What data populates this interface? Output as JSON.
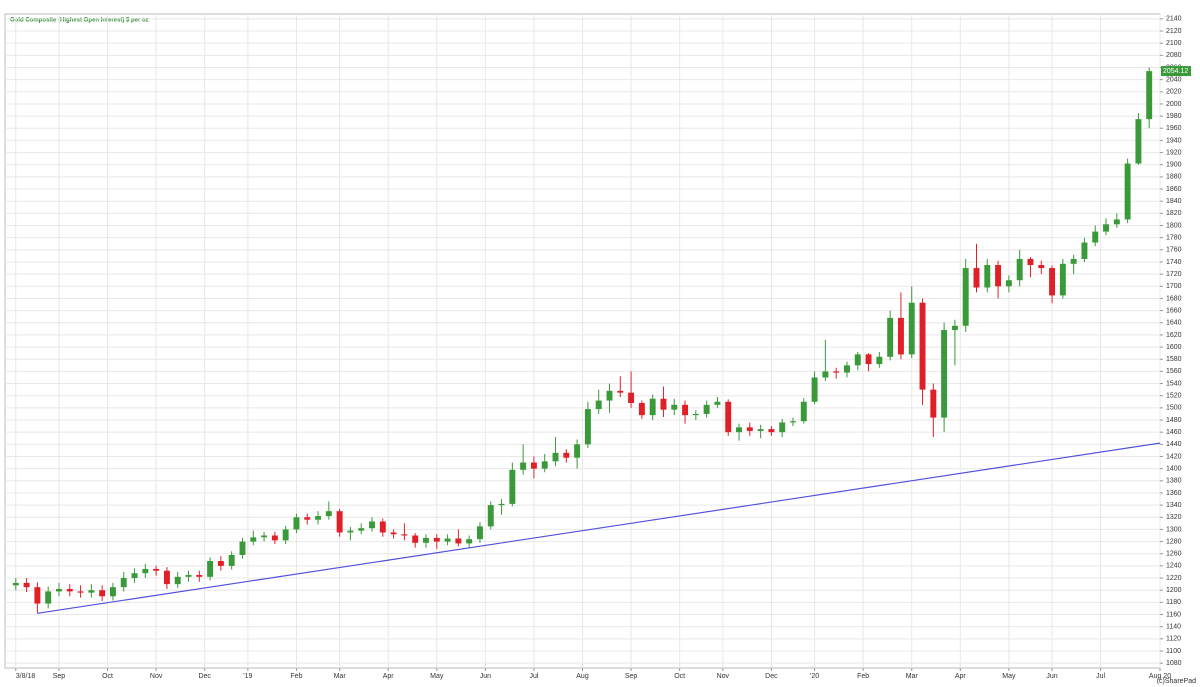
{
  "chart_data": {
    "type": "candlestick",
    "title": "Gold Composite (Highest Open Interest) $ per oz",
    "credit": "(c)SharePad",
    "last_price": 2054.12,
    "up_color": "#3a9a3a",
    "down_color": "#e02028",
    "grid": true,
    "x": [
      0,
      1,
      2,
      3,
      4,
      5,
      6,
      7,
      8,
      9,
      10,
      11,
      12,
      13,
      14,
      15,
      16,
      17,
      18,
      19,
      20,
      21,
      22,
      23,
      24,
      25,
      26,
      27,
      28,
      29,
      30,
      31,
      32,
      33,
      34,
      35,
      36,
      37,
      38,
      39,
      40,
      41,
      42,
      43,
      44,
      45,
      46,
      47,
      48,
      49,
      50,
      51,
      52,
      53,
      54,
      55,
      56,
      57,
      58,
      59,
      60,
      61,
      62,
      63,
      64,
      65,
      66,
      67,
      68,
      69,
      70,
      71,
      72,
      73,
      74,
      75,
      76,
      77,
      78,
      79,
      80,
      81,
      82,
      83,
      84,
      85,
      86,
      87,
      88,
      89,
      90,
      91,
      92,
      93,
      94,
      95,
      96,
      97,
      98,
      99,
      100,
      101,
      102,
      103,
      104,
      105
    ],
    "open": [
      1208,
      1212,
      1205,
      1178,
      1198,
      1202,
      1198,
      1196,
      1200,
      1190,
      1205,
      1220,
      1228,
      1235,
      1232,
      1210,
      1222,
      1225,
      1222,
      1248,
      1240,
      1258,
      1280,
      1287,
      1290,
      1282,
      1300,
      1320,
      1316,
      1322,
      1330,
      1295,
      1298,
      1302,
      1313,
      1295,
      1292,
      1290,
      1278,
      1286,
      1280,
      1285,
      1277,
      1284,
      1305,
      1340,
      1342,
      1398,
      1410,
      1400,
      1412,
      1426,
      1418,
      1440,
      1498,
      1512,
      1528,
      1525,
      1508,
      1488,
      1515,
      1497,
      1505,
      1488,
      1490,
      1505,
      1510,
      1460,
      1468,
      1462,
      1465,
      1460,
      1476,
      1478,
      1510,
      1550,
      1560,
      1558,
      1570,
      1588,
      1572,
      1584,
      1648,
      1588,
      1673,
      1530,
      1484,
      1628,
      1635,
      1730,
      1698,
      1735,
      1700,
      1710,
      1745,
      1735,
      1730,
      1685,
      1737,
      1745,
      1772,
      1790,
      1802,
      1810,
      1902,
      1975
    ],
    "high": [
      1220,
      1220,
      1213,
      1206,
      1212,
      1210,
      1208,
      1210,
      1208,
      1212,
      1230,
      1236,
      1243,
      1240,
      1238,
      1230,
      1232,
      1232,
      1254,
      1256,
      1264,
      1286,
      1298,
      1296,
      1296,
      1306,
      1326,
      1326,
      1330,
      1346,
      1334,
      1304,
      1310,
      1320,
      1318,
      1300,
      1310,
      1294,
      1292,
      1292,
      1292,
      1300,
      1290,
      1312,
      1346,
      1350,
      1410,
      1440,
      1420,
      1424,
      1452,
      1432,
      1448,
      1510,
      1530,
      1540,
      1552,
      1560,
      1512,
      1522,
      1535,
      1515,
      1512,
      1496,
      1512,
      1518,
      1514,
      1474,
      1476,
      1472,
      1470,
      1482,
      1484,
      1516,
      1560,
      1612,
      1566,
      1576,
      1592,
      1590,
      1592,
      1660,
      1690,
      1700,
      1680,
      1540,
      1640,
      1645,
      1745,
      1770,
      1745,
      1742,
      1718,
      1760,
      1748,
      1742,
      1734,
      1745,
      1752,
      1780,
      1800,
      1812,
      1820,
      1910,
      1985,
      2060
    ],
    "low": [
      1200,
      1197,
      1162,
      1170,
      1190,
      1190,
      1188,
      1188,
      1182,
      1183,
      1198,
      1212,
      1220,
      1224,
      1202,
      1204,
      1214,
      1214,
      1216,
      1232,
      1234,
      1252,
      1274,
      1280,
      1276,
      1276,
      1294,
      1308,
      1308,
      1316,
      1288,
      1282,
      1292,
      1296,
      1288,
      1285,
      1282,
      1270,
      1270,
      1268,
      1274,
      1272,
      1270,
      1278,
      1300,
      1324,
      1338,
      1390,
      1384,
      1394,
      1404,
      1410,
      1400,
      1434,
      1490,
      1492,
      1518,
      1500,
      1482,
      1480,
      1485,
      1488,
      1474,
      1480,
      1484,
      1500,
      1454,
      1446,
      1454,
      1450,
      1454,
      1452,
      1470,
      1474,
      1506,
      1544,
      1548,
      1550,
      1562,
      1560,
      1566,
      1578,
      1580,
      1582,
      1505,
      1452,
      1460,
      1570,
      1625,
      1690,
      1690,
      1680,
      1690,
      1700,
      1715,
      1720,
      1672,
      1680,
      1720,
      1740,
      1766,
      1784,
      1796,
      1804,
      1900,
      1960
    ],
    "close": [
      1212,
      1205,
      1178,
      1198,
      1202,
      1198,
      1196,
      1200,
      1190,
      1205,
      1220,
      1228,
      1235,
      1232,
      1210,
      1222,
      1225,
      1222,
      1248,
      1240,
      1258,
      1280,
      1287,
      1290,
      1282,
      1300,
      1320,
      1316,
      1322,
      1330,
      1295,
      1298,
      1302,
      1313,
      1295,
      1292,
      1290,
      1278,
      1286,
      1280,
      1285,
      1277,
      1284,
      1305,
      1340,
      1342,
      1398,
      1410,
      1400,
      1412,
      1426,
      1418,
      1440,
      1498,
      1512,
      1528,
      1525,
      1508,
      1488,
      1515,
      1497,
      1505,
      1488,
      1490,
      1505,
      1510,
      1460,
      1468,
      1462,
      1465,
      1460,
      1476,
      1478,
      1510,
      1550,
      1560,
      1558,
      1570,
      1588,
      1572,
      1584,
      1648,
      1588,
      1673,
      1530,
      1484,
      1628,
      1635,
      1730,
      1698,
      1735,
      1700,
      1710,
      1745,
      1735,
      1730,
      1685,
      1737,
      1745,
      1772,
      1790,
      1802,
      1810,
      1902,
      1975,
      2054
    ],
    "trendline": {
      "color": "#5050e0",
      "x": [
        2,
        106
      ],
      "y": [
        1162,
        1442
      ]
    },
    "xlim": [
      -1,
      106
    ],
    "xticks": [
      {
        "value": 0,
        "label": "3/8/18"
      },
      {
        "value": 4,
        "label": "Sep"
      },
      {
        "value": 8.5,
        "label": "Oct"
      },
      {
        "value": 13,
        "label": "Nov"
      },
      {
        "value": 17.5,
        "label": "Dec"
      },
      {
        "value": 21.5,
        "label": "'19"
      },
      {
        "value": 26,
        "label": "Feb"
      },
      {
        "value": 30,
        "label": "Mar"
      },
      {
        "value": 34.5,
        "label": "Apr"
      },
      {
        "value": 39,
        "label": "May"
      },
      {
        "value": 43.5,
        "label": "Jun"
      },
      {
        "value": 48,
        "label": "Jul"
      },
      {
        "value": 52.5,
        "label": "Aug"
      },
      {
        "value": 57,
        "label": "Sep"
      },
      {
        "value": 61.5,
        "label": "Oct"
      },
      {
        "value": 65.5,
        "label": "Nov"
      },
      {
        "value": 70,
        "label": "Dec"
      },
      {
        "value": 74,
        "label": "'20"
      },
      {
        "value": 78.5,
        "label": "Feb"
      },
      {
        "value": 83,
        "label": "Mar"
      },
      {
        "value": 87.5,
        "label": "Apr"
      },
      {
        "value": 92,
        "label": "May"
      },
      {
        "value": 96,
        "label": "Jun"
      },
      {
        "value": 100.5,
        "label": "Jul"
      },
      {
        "value": 106,
        "label": "Aug 20"
      }
    ],
    "ylim": [
      1072,
      2148
    ],
    "yticks": [
      1080,
      1100,
      1120,
      1140,
      1160,
      1180,
      1200,
      1220,
      1240,
      1260,
      1280,
      1300,
      1320,
      1340,
      1360,
      1380,
      1400,
      1420,
      1440,
      1460,
      1480,
      1500,
      1520,
      1540,
      1560,
      1580,
      1600,
      1620,
      1640,
      1660,
      1680,
      1700,
      1720,
      1740,
      1760,
      1780,
      1800,
      1820,
      1840,
      1860,
      1880,
      1900,
      1920,
      1940,
      1960,
      1980,
      2000,
      2020,
      2040,
      2060,
      2080,
      2100,
      2120,
      2140
    ]
  }
}
